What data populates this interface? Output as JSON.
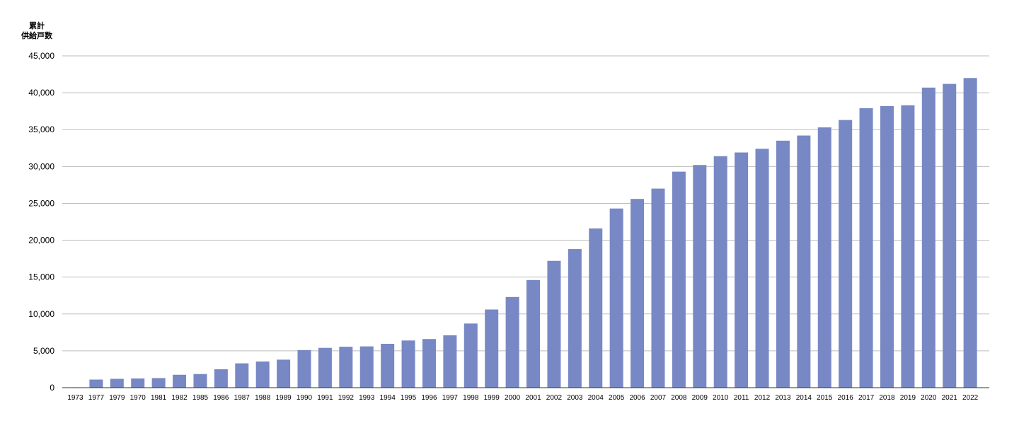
{
  "chart_data": {
    "type": "bar",
    "ylabel": [
      "累計",
      "供給戸数"
    ],
    "ylim": [
      0,
      45000
    ],
    "yticks": [
      0,
      5000,
      10000,
      15000,
      20000,
      25000,
      30000,
      35000,
      40000,
      45000
    ],
    "ytick_labels": [
      "0",
      "5,000",
      "10,000",
      "15,000",
      "20,000",
      "25,000",
      "30,000",
      "35,000",
      "40,000",
      "45,000"
    ],
    "grid": true,
    "bar_color": "#7788c4",
    "categories": [
      "1973",
      "1977",
      "1979",
      "1970",
      "1981",
      "1982",
      "1985",
      "1986",
      "1987",
      "1988",
      "1989",
      "1990",
      "1991",
      "1992",
      "1993",
      "1994",
      "1995",
      "1996",
      "1997",
      "1998",
      "1999",
      "2000",
      "2001",
      "2002",
      "2003",
      "2004",
      "2005",
      "2006",
      "2007",
      "2008",
      "2009",
      "2010",
      "2011",
      "2012",
      "2013",
      "2014",
      "2015",
      "2016",
      "2017",
      "2018",
      "2019",
      "2020",
      "2021",
      "2022"
    ],
    "values": [
      50,
      1100,
      1200,
      1250,
      1300,
      1750,
      1850,
      2500,
      3300,
      3550,
      3800,
      5100,
      5400,
      5550,
      5600,
      5950,
      6400,
      6600,
      7100,
      8700,
      10600,
      12300,
      14600,
      17200,
      18800,
      21600,
      24300,
      25600,
      27000,
      29300,
      30200,
      31400,
      31900,
      32400,
      33500,
      34200,
      35300,
      36300,
      37900,
      38200,
      38300,
      40700,
      41200,
      42000
    ]
  }
}
